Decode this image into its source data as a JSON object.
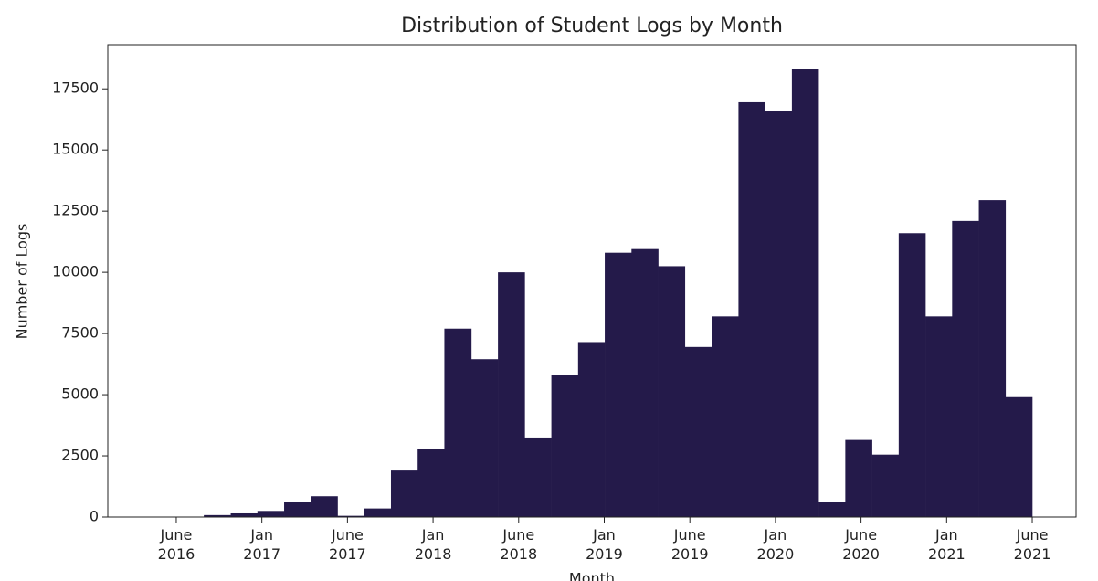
{
  "chart_data": {
    "type": "histogram",
    "title": "Distribution of Student Logs by Month",
    "x_label": "Month",
    "y_label": "Number of Logs",
    "color": "#241a4a",
    "bins": [
      2016.193,
      2016.349,
      2016.505,
      2016.661,
      2016.818,
      2016.974,
      2017.13,
      2017.286,
      2017.442,
      2017.598,
      2017.754,
      2017.91,
      2018.066,
      2018.223,
      2018.379,
      2018.535,
      2018.691,
      2018.847,
      2019.003,
      2019.159,
      2019.315,
      2019.471,
      2019.627,
      2019.784,
      2019.94,
      2020.096,
      2020.252,
      2020.408,
      2020.564,
      2020.72,
      2020.876,
      2021.032,
      2021.188,
      2021.344,
      2021.5
    ],
    "values": [
      0,
      0,
      0,
      80,
      150,
      250,
      600,
      850,
      50,
      350,
      1900,
      2800,
      7700,
      6450,
      10000,
      3250,
      5800,
      7150,
      10800,
      10950,
      10250,
      6950,
      8200,
      16950,
      16600,
      18300,
      600,
      3150,
      2550,
      11600,
      8200,
      12100,
      12950,
      4900
    ],
    "xlim": [
      2016.1,
      2021.756
    ],
    "xticks": [
      {
        "value": 2016.5,
        "label": "June\n2016"
      },
      {
        "value": 2017.0,
        "label": "Jan\n2017"
      },
      {
        "value": 2017.5,
        "label": "June\n2017"
      },
      {
        "value": 2018.0,
        "label": "Jan\n2018"
      },
      {
        "value": 2018.5,
        "label": "June\n2018"
      },
      {
        "value": 2019.0,
        "label": "Jan\n2019"
      },
      {
        "value": 2019.5,
        "label": "June\n2019"
      },
      {
        "value": 2020.0,
        "label": "Jan\n2020"
      },
      {
        "value": 2020.5,
        "label": "June\n2020"
      },
      {
        "value": 2021.0,
        "label": "Jan\n2021"
      },
      {
        "value": 2021.5,
        "label": "June\n2021"
      }
    ],
    "ylim": [
      0,
      19300
    ],
    "yticks": [
      0,
      2500,
      5000,
      7500,
      10000,
      12500,
      15000,
      17500
    ]
  }
}
